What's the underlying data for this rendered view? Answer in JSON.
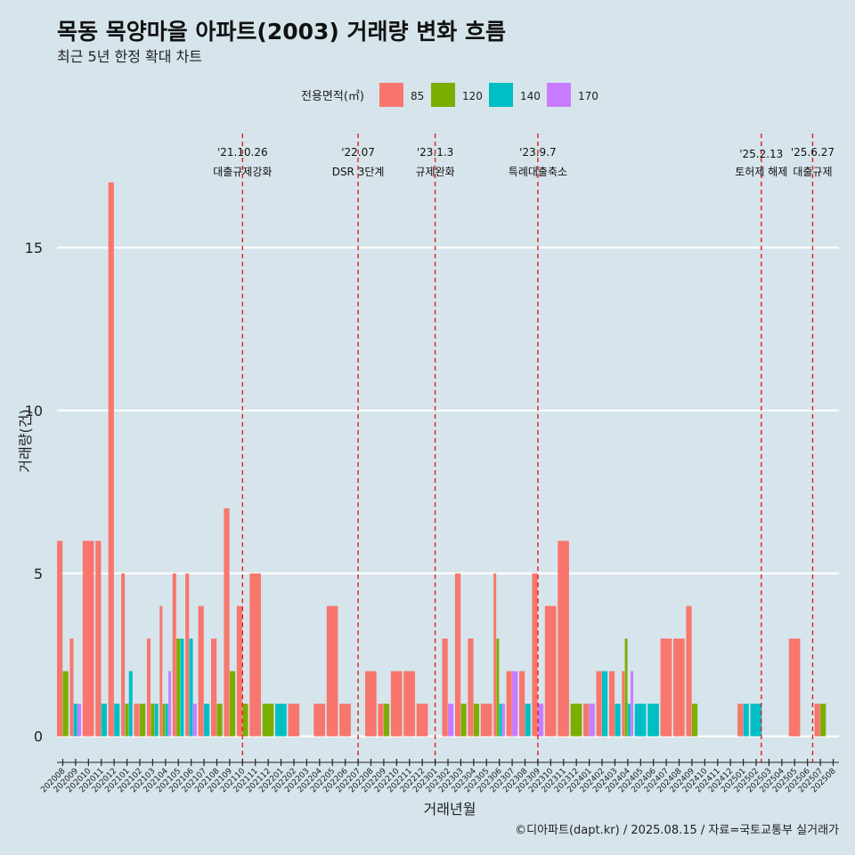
{
  "chart_data": {
    "type": "bar",
    "title": "목동 목양마을 아파트(2003) 거래량 변화 흐름",
    "subtitle": "최근 5년 한정 확대 차트",
    "xlabel": "거래년월",
    "ylabel": "거래량(건)",
    "ylim": [
      -0.8,
      18.5
    ],
    "yticks": [
      0,
      5,
      10,
      15
    ],
    "grid": "horizontal",
    "legend_position": "top",
    "legend_title": "전용면적(㎡)",
    "legend_entries": [
      {
        "name": "85",
        "color": "#F8766D"
      },
      {
        "name": "120",
        "color": "#7CAE00"
      },
      {
        "name": "140",
        "color": "#00BFC4"
      },
      {
        "name": "170",
        "color": "#C77CFF"
      }
    ],
    "categories": [
      "202008",
      "202009",
      "202010",
      "202011",
      "202012",
      "202101",
      "202102",
      "202103",
      "202104",
      "202105",
      "202106",
      "202107",
      "202108",
      "202109",
      "202110",
      "202111",
      "202112",
      "202201",
      "202202",
      "202203",
      "202204",
      "202205",
      "202206",
      "202207",
      "202208",
      "202209",
      "202210",
      "202211",
      "202212",
      "202301",
      "202302",
      "202303",
      "202304",
      "202305",
      "202306",
      "202307",
      "202308",
      "202309",
      "202310",
      "202311",
      "202312",
      "202401",
      "202402",
      "202403",
      "202404",
      "202405",
      "202406",
      "202407",
      "202408",
      "202409",
      "202410",
      "202411",
      "202412",
      "202501",
      "202502",
      "202503",
      "202504",
      "202505",
      "202506",
      "202507",
      "202508"
    ],
    "series": [
      {
        "name": "85",
        "color": "#F8766D",
        "values": [
          6,
          3,
          6,
          6,
          17,
          5,
          1,
          3,
          4,
          5,
          5,
          4,
          3,
          7,
          4,
          5,
          0,
          0,
          1,
          0,
          1,
          4,
          1,
          0,
          2,
          1,
          2,
          2,
          1,
          0,
          3,
          5,
          3,
          1,
          5,
          2,
          2,
          5,
          4,
          6,
          0,
          1,
          2,
          2,
          2,
          0,
          0,
          3,
          3,
          4,
          0,
          0,
          0,
          1,
          0,
          0,
          0,
          3,
          0,
          1,
          0
        ]
      },
      {
        "name": "120",
        "color": "#7CAE00",
        "values": [
          2,
          0,
          0,
          0,
          0,
          1,
          1,
          1,
          1,
          3,
          0,
          0,
          1,
          2,
          1,
          0,
          1,
          0,
          0,
          0,
          0,
          0,
          0,
          0,
          0,
          1,
          0,
          0,
          0,
          0,
          0,
          1,
          1,
          0,
          3,
          0,
          0,
          0,
          0,
          0,
          1,
          0,
          0,
          0,
          3,
          0,
          0,
          0,
          0,
          1,
          0,
          0,
          0,
          0,
          0,
          0,
          0,
          0,
          0,
          1,
          0
        ]
      },
      {
        "name": "140",
        "color": "#00BFC4",
        "values": [
          0,
          1,
          0,
          1,
          1,
          2,
          0,
          1,
          1,
          3,
          3,
          1,
          0,
          0,
          0,
          0,
          0,
          1,
          0,
          0,
          0,
          0,
          0,
          0,
          0,
          0,
          0,
          0,
          0,
          0,
          0,
          0,
          0,
          0,
          1,
          0,
          1,
          0,
          0,
          0,
          0,
          0,
          2,
          1,
          1,
          1,
          1,
          0,
          0,
          0,
          0,
          0,
          0,
          1,
          1,
          0,
          0,
          0,
          0,
          0,
          0
        ]
      },
      {
        "name": "170",
        "color": "#C77CFF",
        "values": [
          0,
          1,
          0,
          0,
          0,
          0,
          0,
          0,
          2,
          0,
          1,
          0,
          0,
          0,
          0,
          0,
          0,
          0,
          0,
          0,
          0,
          0,
          0,
          0,
          0,
          0,
          0,
          0,
          0,
          0,
          1,
          0,
          0,
          0,
          1,
          2,
          0,
          1,
          0,
          0,
          0,
          1,
          0,
          0,
          2,
          0,
          0,
          0,
          0,
          0,
          0,
          0,
          0,
          0,
          0,
          0,
          0,
          0,
          0,
          0,
          0
        ]
      }
    ],
    "annotations": [
      {
        "index": 14.0,
        "date": "'21.10.26",
        "label": "대출규제강화"
      },
      {
        "index": 23.0,
        "date": "'22.07",
        "label": "DSR 3단계"
      },
      {
        "index": 29.0,
        "date": "'23.1.3",
        "label": "규제완화"
      },
      {
        "index": 37.0,
        "date": "'23.9.7",
        "label": "특례대출축소"
      },
      {
        "index": 54.4,
        "date": "'25.2.13",
        "label": "토허제 해제"
      },
      {
        "index": 58.4,
        "date": "'25.6.27",
        "label": "대출규제"
      }
    ]
  },
  "caption": "©디아파트(dapt.kr) / 2025.08.15 / 자료=국토교통부 실거래가"
}
